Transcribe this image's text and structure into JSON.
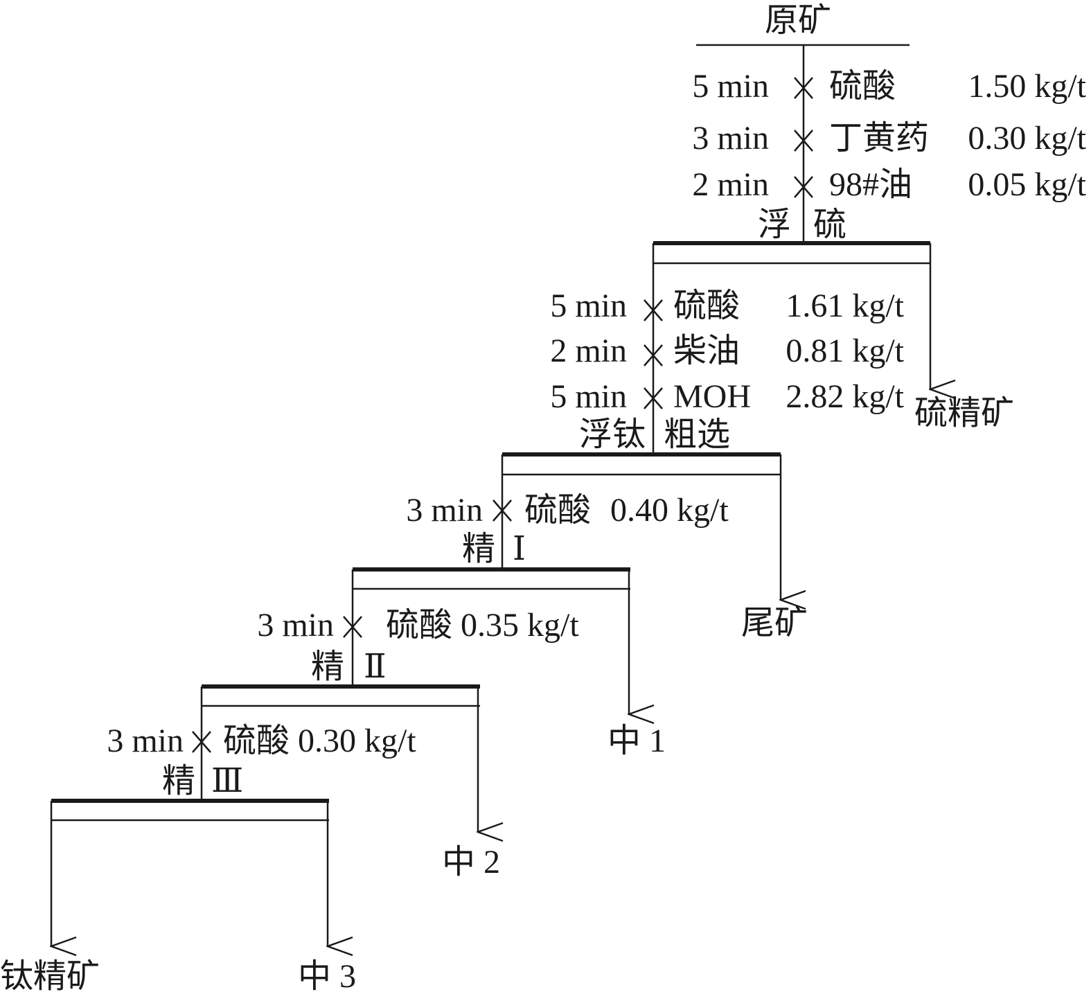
{
  "feed": "原矿",
  "stages": [
    {
      "name_left": "浮",
      "name_right": "硫",
      "reagents": [
        {
          "time": "5 min",
          "reagent": "硫酸",
          "dose": "1.50 kg/t"
        },
        {
          "time": "3 min",
          "reagent": "丁黄药",
          "dose": "0.30 kg/t"
        },
        {
          "time": "2 min",
          "reagent": "98#油",
          "dose": "0.05 kg/t"
        }
      ],
      "output_right": "硫精矿"
    },
    {
      "name_left": "浮钛",
      "name_right": "粗选",
      "reagents": [
        {
          "time": "5 min",
          "reagent": "硫酸",
          "dose": "1.61 kg/t"
        },
        {
          "time": "2 min",
          "reagent": "柴油",
          "dose": "0.81 kg/t"
        },
        {
          "time": "5 min",
          "reagent": "MOH",
          "dose": "2.82 kg/t"
        }
      ],
      "output_right": "尾矿"
    },
    {
      "name_left": "精",
      "name_right": "Ⅰ",
      "reagents": [
        {
          "time": "3 min",
          "reagent": "硫酸",
          "dose": "0.40 kg/t"
        }
      ],
      "output_right": "中 1"
    },
    {
      "name_left": "精",
      "name_right": "Ⅱ",
      "reagents": [
        {
          "time": "3 min",
          "reagent": "硫酸",
          "dose": "0.35 kg/t"
        }
      ],
      "output_right": "中 2"
    },
    {
      "name_left": "精",
      "name_right": "Ⅲ",
      "reagents": [
        {
          "time": "3 min",
          "reagent": "硫酸",
          "dose": "0.30 kg/t"
        }
      ],
      "output_right": "中 3",
      "output_left": "钛精矿"
    }
  ]
}
